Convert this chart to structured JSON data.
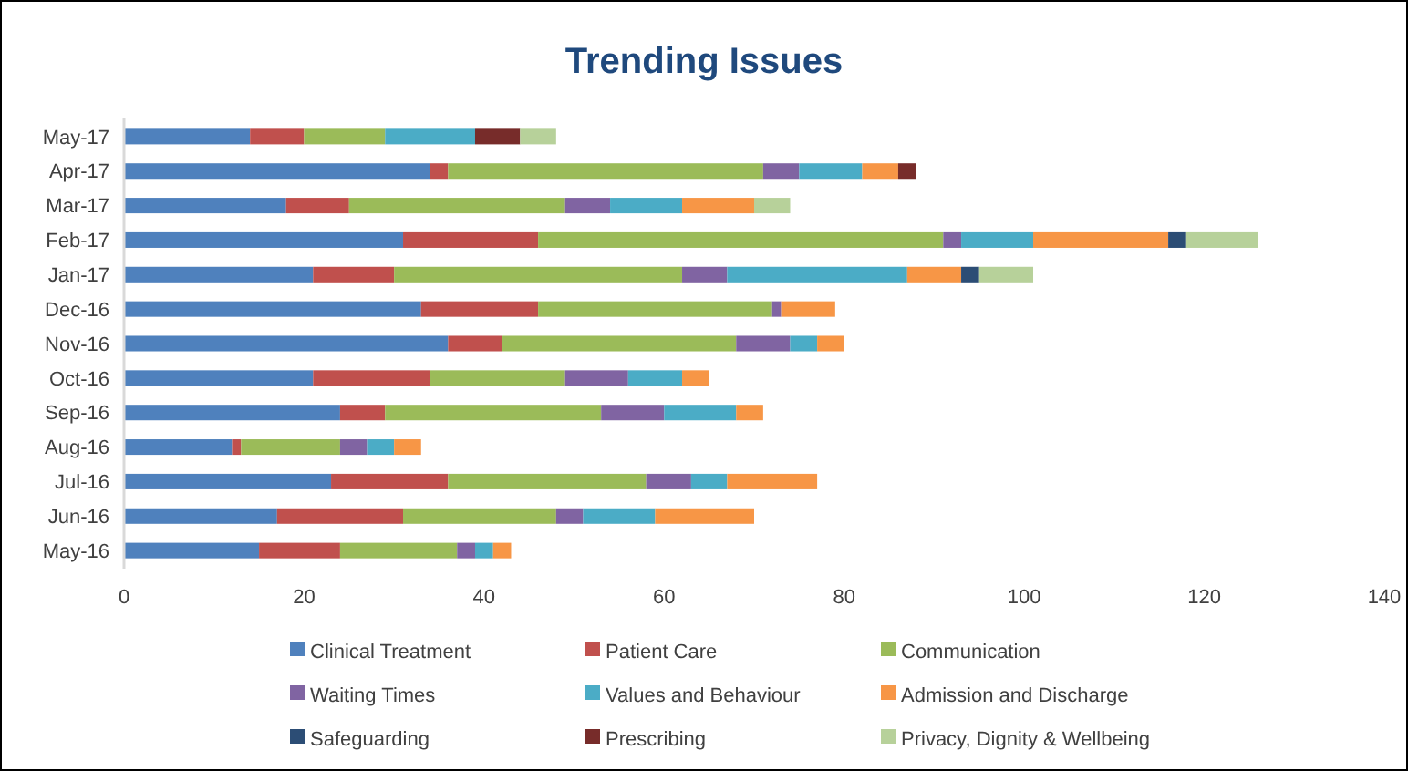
{
  "chart_data": {
    "type": "bar",
    "title": "Trending Issues",
    "orientation": "horizontal",
    "stacked": true,
    "categories": [
      "May-17",
      "Apr-17",
      "Mar-17",
      "Feb-17",
      "Jan-17",
      "Dec-16",
      "Nov-16",
      "Oct-16",
      "Sep-16",
      "Aug-16",
      "Jul-16",
      "Jun-16",
      "May-16"
    ],
    "series": [
      {
        "name": "Clinical Treatment",
        "color": "#4f81bd",
        "values": [
          14,
          34,
          18,
          31,
          21,
          33,
          36,
          21,
          24,
          12,
          23,
          17,
          15
        ]
      },
      {
        "name": "Patient Care",
        "color": "#c0504d",
        "values": [
          6,
          2,
          7,
          15,
          9,
          13,
          6,
          13,
          5,
          1,
          13,
          14,
          9
        ]
      },
      {
        "name": "Communication",
        "color": "#9bbb59",
        "values": [
          9,
          35,
          24,
          45,
          32,
          26,
          26,
          15,
          24,
          11,
          22,
          17,
          13
        ]
      },
      {
        "name": "Waiting Times",
        "color": "#8064a2",
        "values": [
          0,
          4,
          5,
          2,
          5,
          1,
          6,
          7,
          7,
          3,
          5,
          3,
          2
        ]
      },
      {
        "name": "Values and Behaviour",
        "color": "#4bacc6",
        "values": [
          10,
          7,
          8,
          8,
          20,
          0,
          3,
          6,
          8,
          3,
          4,
          8,
          2
        ]
      },
      {
        "name": "Admission and Discharge",
        "color": "#f79646",
        "values": [
          0,
          4,
          8,
          15,
          6,
          6,
          3,
          3,
          3,
          3,
          10,
          11,
          2
        ]
      },
      {
        "name": "Safeguarding",
        "color": "#2c4d75",
        "values": [
          0,
          0,
          0,
          2,
          2,
          0,
          0,
          0,
          0,
          0,
          0,
          0,
          0
        ]
      },
      {
        "name": "Prescribing",
        "color": "#772c2a",
        "values": [
          5,
          2,
          0,
          0,
          0,
          0,
          0,
          0,
          0,
          0,
          0,
          0,
          0
        ]
      },
      {
        "name": "Privacy, Dignity & Wellbeing",
        "color": "#b7d19a",
        "values": [
          4,
          0,
          4,
          8,
          6,
          0,
          0,
          0,
          0,
          0,
          0,
          0,
          0
        ]
      }
    ],
    "xlim": [
      0,
      140
    ],
    "xticks": [
      0,
      20,
      40,
      60,
      80,
      100,
      120,
      140
    ],
    "grid": false,
    "legend": "bottom"
  }
}
